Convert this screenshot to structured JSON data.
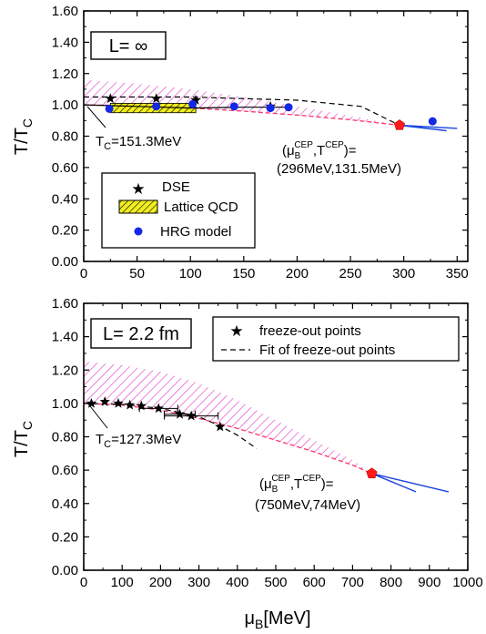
{
  "colors": {
    "dse_band": "#e040c8",
    "lattice_fill": "#f2ee1e",
    "hrg": "#1428e6",
    "cep": "#ff1a1a",
    "crossover": "#ff3366",
    "slope_lines": "#1a44dd"
  },
  "chart_data": [
    {
      "type": "line",
      "panel": "top",
      "box_label": "L= ∞",
      "ylabel": "T/T",
      "ylabel_sub": "C",
      "xlim": [
        0,
        360
      ],
      "ylim": [
        0.0,
        1.6
      ],
      "x_ticks": [
        "0",
        "50",
        "100",
        "150",
        "200",
        "250",
        "300",
        "350"
      ],
      "x_tick_values": [
        0,
        50,
        100,
        150,
        200,
        250,
        300,
        350
      ],
      "y_ticks": [
        "0.00",
        "0.20",
        "0.40",
        "0.60",
        "0.80",
        "1.00",
        "1.20",
        "1.40",
        "1.60"
      ],
      "y_tick_values": [
        0,
        0.2,
        0.4,
        0.6,
        0.8,
        1.0,
        1.2,
        1.4,
        1.6
      ],
      "tc_note": "T",
      "tc_note_sub": "C",
      "tc_note_val": "=151.3MeV",
      "cep_label_line1": "(μ",
      "cep_label_sub1": "B",
      "cep_label_sup1": "CEP",
      "cep_label_mid": ",T",
      "cep_label_sup2": "CEP",
      "cep_label_end": ")=",
      "cep_label_line2": "(296MeV,131.5MeV)",
      "legend": [
        {
          "label": "DSE",
          "marker": "star"
        },
        {
          "label": "Lattice QCD",
          "marker": "hatched-box"
        },
        {
          "label": "HRG model",
          "marker": "circle"
        }
      ],
      "dse_points": {
        "x": [
          25,
          68,
          105,
          175
        ],
        "y": [
          1.04,
          1.04,
          1.03,
          0.99
        ],
        "xerr": [
          0,
          0,
          0,
          0
        ]
      },
      "hrg_points": {
        "x": [
          24,
          68,
          102,
          141,
          175,
          192,
          327
        ],
        "y": [
          0.975,
          0.99,
          1.005,
          0.99,
          0.98,
          0.985,
          0.895
        ]
      },
      "lattice_band": {
        "x": [
          25,
          105
        ],
        "y": [
          0.95,
          1.01
        ]
      },
      "dse_band_upper": {
        "x": [
          0,
          50,
          100,
          150,
          200,
          250,
          296
        ],
        "y": [
          1.16,
          1.135,
          1.1,
          1.05,
          0.99,
          0.93,
          0.87
        ]
      },
      "dse_band_lower": {
        "x": [
          0,
          50,
          100,
          150,
          200,
          250,
          296
        ],
        "y": [
          1.0,
          0.995,
          0.98,
          0.96,
          0.935,
          0.905,
          0.87
        ]
      },
      "fit_dashed": {
        "x": [
          0,
          100,
          200,
          260,
          296
        ],
        "y": [
          1.05,
          1.05,
          1.03,
          0.99,
          0.87
        ]
      },
      "solid_line": {
        "x": [
          0,
          50,
          100,
          150,
          190
        ],
        "y": [
          1.0,
          0.99,
          0.98,
          0.985,
          0.985
        ]
      },
      "cep": {
        "x": 296,
        "y": 0.87
      },
      "slope_lines": [
        {
          "x": [
            296,
            350
          ],
          "y": [
            0.87,
            0.85
          ]
        },
        {
          "x": [
            296,
            340
          ],
          "y": [
            0.87,
            0.835
          ]
        }
      ]
    },
    {
      "type": "line",
      "panel": "bottom",
      "box_label": "L= 2.2 fm",
      "ylabel": "T/T",
      "ylabel_sub": "C",
      "xlabel": "μ",
      "xlabel_sub": "B",
      "xlabel_unit": "[MeV]",
      "xlim": [
        0,
        1000
      ],
      "ylim": [
        0.0,
        1.6
      ],
      "x_ticks": [
        "0",
        "100",
        "200",
        "300",
        "400",
        "500",
        "600",
        "700",
        "800",
        "900",
        "1000"
      ],
      "x_tick_values": [
        0,
        100,
        200,
        300,
        400,
        500,
        600,
        700,
        800,
        900,
        1000
      ],
      "y_ticks": [
        "0.00",
        "0.20",
        "0.40",
        "0.60",
        "0.80",
        "1.00",
        "1.20",
        "1.40",
        "1.60"
      ],
      "y_tick_values": [
        0,
        0.2,
        0.4,
        0.6,
        0.8,
        1.0,
        1.2,
        1.4,
        1.6
      ],
      "tc_note": "T",
      "tc_note_sub": "C",
      "tc_note_val": "=127.3MeV",
      "cep_label_line1": "(μ",
      "cep_label_sub1": "B",
      "cep_label_sup1": "CEP",
      "cep_label_mid": ",T",
      "cep_label_sup2": "CEP",
      "cep_label_end": ")=",
      "cep_label_line2": "(750MeV,74MeV)",
      "legend": [
        {
          "label": "freeze-out points",
          "marker": "star"
        },
        {
          "label": "Fit of freeze-out points",
          "marker": "dash"
        }
      ],
      "freeze_out_points": {
        "x": [
          20,
          55,
          90,
          120,
          150,
          195,
          250,
          280,
          355
        ],
        "y": [
          1.0,
          1.01,
          1.0,
          0.99,
          0.985,
          0.97,
          0.935,
          0.925,
          0.86
        ],
        "xerr": [
          0,
          0,
          0,
          0,
          0,
          50,
          40,
          70,
          0
        ]
      },
      "dse_band_upper": {
        "x": [
          0,
          100,
          200,
          300,
          400,
          500,
          600,
          700,
          750
        ],
        "y": [
          1.25,
          1.23,
          1.19,
          1.12,
          1.02,
          0.9,
          0.78,
          0.66,
          0.58
        ]
      },
      "dse_band_lower": {
        "x": [
          0,
          100,
          200,
          300,
          400,
          500,
          600,
          700,
          750
        ],
        "y": [
          1.0,
          0.99,
          0.96,
          0.91,
          0.85,
          0.78,
          0.71,
          0.63,
          0.58
        ]
      },
      "fit_dashed": {
        "x": [
          0,
          100,
          200,
          300,
          350,
          400,
          450
        ],
        "y": [
          1.0,
          0.995,
          0.97,
          0.92,
          0.87,
          0.81,
          0.73
        ]
      },
      "cep": {
        "x": 750,
        "y": 0.58
      },
      "slope_lines": [
        {
          "x": [
            750,
            950
          ],
          "y": [
            0.58,
            0.47
          ]
        },
        {
          "x": [
            750,
            865
          ],
          "y": [
            0.58,
            0.47
          ]
        }
      ]
    }
  ]
}
